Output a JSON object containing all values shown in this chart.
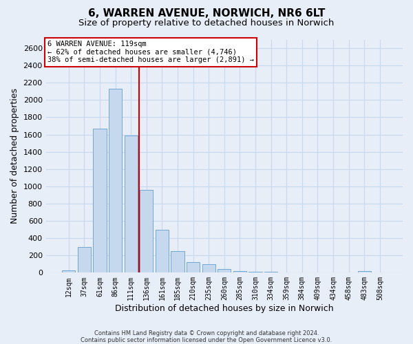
{
  "title": "6, WARREN AVENUE, NORWICH, NR6 6LT",
  "subtitle": "Size of property relative to detached houses in Norwich",
  "xlabel": "Distribution of detached houses by size in Norwich",
  "ylabel": "Number of detached properties",
  "footer_line1": "Contains HM Land Registry data © Crown copyright and database right 2024.",
  "footer_line2": "Contains public sector information licensed under the Open Government Licence v3.0.",
  "bar_color": "#c5d8ee",
  "bar_edge_color": "#6fa8d4",
  "vline_color": "#cc0000",
  "vline_x": 4.5,
  "annotation_text": "6 WARREN AVENUE: 119sqm\n← 62% of detached houses are smaller (4,746)\n38% of semi-detached houses are larger (2,891) →",
  "categories": [
    "12sqm",
    "37sqm",
    "61sqm",
    "86sqm",
    "111sqm",
    "136sqm",
    "161sqm",
    "185sqm",
    "210sqm",
    "235sqm",
    "260sqm",
    "285sqm",
    "310sqm",
    "334sqm",
    "359sqm",
    "384sqm",
    "409sqm",
    "434sqm",
    "458sqm",
    "483sqm",
    "508sqm"
  ],
  "values": [
    25,
    300,
    1670,
    2130,
    1590,
    960,
    500,
    250,
    120,
    100,
    45,
    20,
    10,
    7,
    5,
    3,
    2,
    2,
    1,
    20,
    1
  ],
  "ylim": [
    0,
    2700
  ],
  "yticks": [
    0,
    200,
    400,
    600,
    800,
    1000,
    1200,
    1400,
    1600,
    1800,
    2000,
    2200,
    2400,
    2600
  ],
  "bg_color": "#e8eef8",
  "grid_color": "#c8d8ec",
  "title_fontsize": 11,
  "subtitle_fontsize": 9.5,
  "ylabel_fontsize": 9,
  "xlabel_fontsize": 9,
  "tick_fontsize": 8,
  "xtick_fontsize": 7
}
